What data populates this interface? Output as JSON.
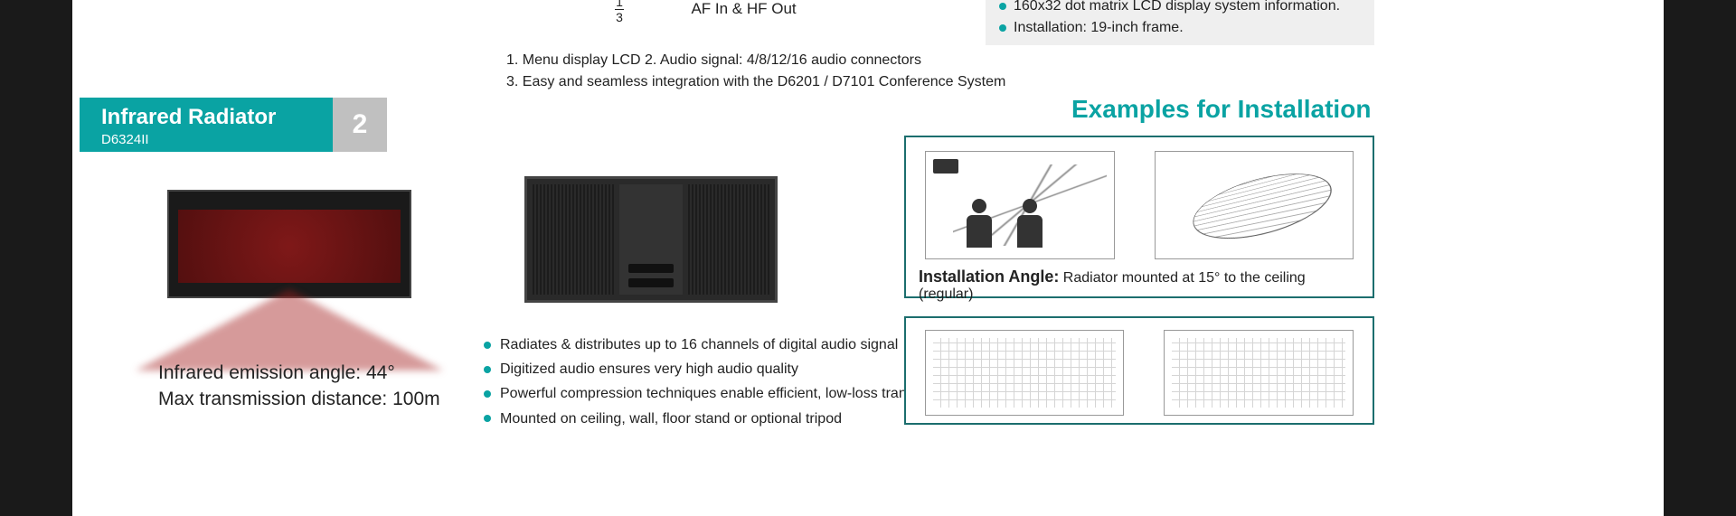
{
  "top_right": {
    "line1": "160x32 dot matrix LCD display system information.",
    "line2": "Installation: 19-inch frame."
  },
  "top_mid": {
    "frac_top": "1",
    "frac_bot": "3",
    "af": "AF In & HF Out"
  },
  "notes": {
    "line1": "1. Menu display LCD   2. Audio signal: 4/8/12/16 audio connectors",
    "line2": "3. Easy and seamless integration with the D6201 / D7101 Conference System"
  },
  "section": {
    "title": "Infrared Radiator",
    "model": "D6324II",
    "number": "2"
  },
  "left_specs": {
    "line1": "Infrared emission angle: 44°",
    "line2": "Max transmission distance: 100m"
  },
  "center_bullets": {
    "b1": "Radiates & distributes up to 16 channels of digital audio signal",
    "b2": "Digitized audio ensures very high audio quality",
    "b3": "Powerful compression techniques enable efficient, low-loss transmission",
    "b4": "Mounted on ceiling, wall, floor stand or optional tripod"
  },
  "examples": {
    "heading": "Examples for Installation",
    "caption1_label": "Installation Angle:",
    "caption1_text": " Radiator mounted at 15° to the ceiling  (regular)"
  },
  "colors": {
    "teal": "#0aa3a3",
    "grey": "#c0c0c0"
  }
}
